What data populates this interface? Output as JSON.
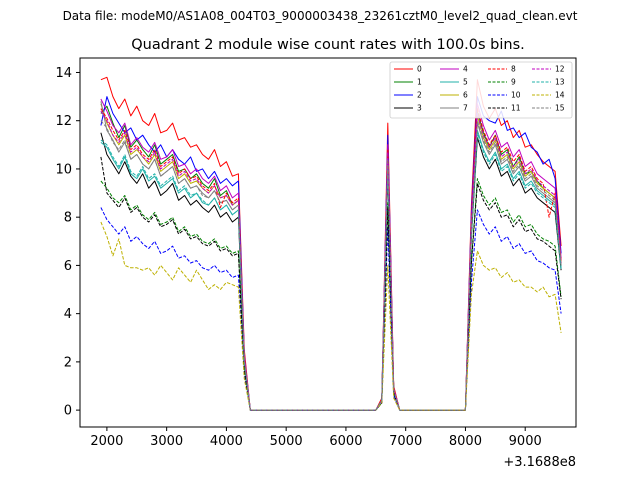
{
  "figure": {
    "suptitle": "Data file: modeM0/AS1A08_004T03_9000003438_23261cztM0_level2_quad_clean.evt",
    "offset_label": "+3.1688e8"
  },
  "chart_data": {
    "type": "line",
    "title": "Quadrant 2 module wise count rates with 100.0s bins.",
    "xlabel": "",
    "ylabel": "",
    "xlim": [
      1550,
      9850
    ],
    "ylim": [
      -0.7,
      14.6
    ],
    "x_ticks": [
      2000,
      3000,
      4000,
      5000,
      6000,
      7000,
      8000,
      9000
    ],
    "x_tick_labels": [
      "2000",
      "3000",
      "4000",
      "5000",
      "6000",
      "7000",
      "8000",
      "9000"
    ],
    "y_ticks": [
      0,
      2,
      4,
      6,
      8,
      10,
      12,
      14
    ],
    "y_tick_labels": [
      "0",
      "2",
      "4",
      "6",
      "8",
      "10",
      "12",
      "14"
    ],
    "legend_position": "top-right",
    "x": [
      1900,
      2000,
      2100,
      2200,
      2300,
      2400,
      2500,
      2600,
      2700,
      2800,
      2900,
      3000,
      3100,
      3200,
      3300,
      3400,
      3500,
      3600,
      3700,
      3800,
      3900,
      4000,
      4100,
      4200,
      4300,
      4400,
      4500,
      6500,
      6600,
      6700,
      6800,
      6900,
      8000,
      8100,
      8200,
      8300,
      8400,
      8500,
      8600,
      8700,
      8800,
      8900,
      9000,
      9100,
      9200,
      9300,
      9400,
      9500,
      9600
    ],
    "series": [
      {
        "name": "0",
        "color": "#ff0000",
        "dash": "solid",
        "values": [
          13.7,
          13.8,
          13.0,
          12.5,
          12.9,
          12.2,
          12.6,
          12.0,
          11.8,
          12.3,
          11.5,
          11.6,
          11.9,
          11.2,
          11.3,
          10.9,
          11.0,
          10.6,
          10.4,
          10.8,
          10.1,
          10.3,
          9.7,
          9.8,
          2.5,
          0.0,
          0.0,
          0.0,
          0.5,
          11.9,
          1.0,
          0.0,
          0.0,
          8.5,
          13.7,
          12.6,
          12.1,
          12.5,
          11.8,
          12.0,
          11.3,
          11.6,
          10.9,
          11.0,
          10.6,
          10.3,
          10.1,
          9.9,
          6.8
        ]
      },
      {
        "name": "1",
        "color": "#008000",
        "dash": "solid",
        "values": [
          12.3,
          12.6,
          11.9,
          11.3,
          11.8,
          10.9,
          11.2,
          10.8,
          10.5,
          11.0,
          10.2,
          10.4,
          10.6,
          9.9,
          10.0,
          9.6,
          9.8,
          9.4,
          9.2,
          9.6,
          8.9,
          9.1,
          8.5,
          8.7,
          2.2,
          0.0,
          0.0,
          0.0,
          0.4,
          10.8,
          0.9,
          0.0,
          0.0,
          7.6,
          12.4,
          11.5,
          10.9,
          11.4,
          10.6,
          10.8,
          10.1,
          10.5,
          9.8,
          9.9,
          9.5,
          9.2,
          9.0,
          8.8,
          6.0
        ]
      },
      {
        "name": "2",
        "color": "#0000ff",
        "dash": "solid",
        "values": [
          11.8,
          13.0,
          12.3,
          11.9,
          11.5,
          11.7,
          11.2,
          11.4,
          11.0,
          10.7,
          11.0,
          10.5,
          10.8,
          10.4,
          10.2,
          10.5,
          9.9,
          10.0,
          9.6,
          9.9,
          9.4,
          9.6,
          9.3,
          9.5,
          2.3,
          0.0,
          0.0,
          0.0,
          0.4,
          11.4,
          0.9,
          0.0,
          0.0,
          8.2,
          13.0,
          12.2,
          12.0,
          11.9,
          12.4,
          11.6,
          11.7,
          11.3,
          11.5,
          10.9,
          10.7,
          10.2,
          10.4,
          9.6,
          6.5
        ]
      },
      {
        "name": "3",
        "color": "#000000",
        "dash": "solid",
        "values": [
          11.5,
          10.6,
          10.2,
          9.8,
          10.3,
          9.7,
          9.4,
          9.8,
          9.2,
          9.5,
          8.9,
          9.1,
          9.4,
          8.7,
          8.9,
          8.5,
          8.7,
          8.4,
          8.2,
          8.5,
          8.0,
          8.2,
          7.8,
          8.0,
          2.0,
          0.0,
          0.0,
          0.0,
          0.4,
          9.8,
          0.8,
          0.0,
          0.0,
          7.2,
          11.3,
          10.5,
          10.0,
          10.4,
          9.7,
          9.9,
          9.3,
          9.6,
          9.0,
          9.2,
          8.8,
          8.6,
          8.4,
          8.2,
          5.8
        ]
      },
      {
        "name": "4",
        "color": "#c000c0",
        "dash": "solid",
        "values": [
          12.9,
          12.4,
          11.8,
          11.5,
          11.9,
          11.0,
          11.3,
          10.9,
          10.7,
          11.1,
          10.4,
          10.5,
          10.8,
          10.1,
          10.2,
          9.8,
          10.0,
          9.6,
          9.4,
          9.7,
          9.1,
          9.3,
          8.8,
          9.0,
          2.3,
          0.0,
          0.0,
          0.0,
          0.4,
          11.0,
          0.9,
          0.0,
          0.0,
          7.9,
          12.7,
          11.8,
          11.2,
          11.6,
          10.9,
          11.1,
          10.5,
          10.8,
          10.1,
          10.3,
          9.8,
          9.6,
          9.4,
          9.2,
          6.3
        ]
      },
      {
        "name": "5",
        "color": "#20b2aa",
        "dash": "solid",
        "values": [
          11.1,
          10.9,
          10.4,
          10.0,
          10.5,
          9.8,
          9.6,
          10.0,
          9.5,
          9.7,
          9.2,
          9.4,
          9.6,
          9.0,
          9.2,
          8.8,
          9.0,
          8.6,
          8.5,
          8.8,
          8.3,
          8.5,
          8.1,
          8.3,
          2.0,
          0.0,
          0.0,
          0.0,
          0.4,
          10.1,
          0.8,
          0.0,
          0.0,
          7.4,
          11.6,
          10.8,
          10.3,
          10.7,
          10.0,
          10.2,
          9.6,
          9.9,
          9.3,
          9.5,
          9.1,
          8.9,
          8.7,
          8.5,
          5.9
        ]
      },
      {
        "name": "6",
        "color": "#bdb000",
        "dash": "solid",
        "values": [
          12.7,
          11.9,
          11.4,
          11.0,
          11.4,
          10.6,
          10.8,
          10.5,
          10.2,
          10.6,
          9.9,
          10.1,
          10.3,
          9.6,
          9.8,
          9.4,
          9.5,
          9.2,
          9.0,
          9.3,
          8.8,
          8.9,
          8.5,
          8.7,
          2.2,
          0.0,
          0.0,
          0.0,
          0.4,
          10.6,
          0.9,
          0.0,
          0.0,
          7.7,
          12.2,
          11.3,
          10.8,
          11.2,
          10.4,
          10.6,
          10.0,
          10.3,
          9.7,
          9.9,
          9.4,
          9.2,
          9.0,
          8.8,
          6.1
        ]
      },
      {
        "name": "7",
        "color": "#808080",
        "dash": "solid",
        "values": [
          12.8,
          11.6,
          11.2,
          10.7,
          11.1,
          10.4,
          10.6,
          10.2,
          10.0,
          10.4,
          9.7,
          9.9,
          10.1,
          9.4,
          9.6,
          9.2,
          9.3,
          9.0,
          8.8,
          9.1,
          8.6,
          8.7,
          8.3,
          8.5,
          2.1,
          0.0,
          0.0,
          0.0,
          0.4,
          10.4,
          0.8,
          0.0,
          0.0,
          7.5,
          11.9,
          11.1,
          10.6,
          11.0,
          10.2,
          10.4,
          9.8,
          10.1,
          9.5,
          9.7,
          9.2,
          9.0,
          8.8,
          8.6,
          6.0
        ]
      },
      {
        "name": "8",
        "color": "#ff0000",
        "dash": "dashed",
        "values": [
          12.5,
          12.1,
          11.6,
          11.2,
          11.6,
          10.8,
          11.0,
          10.6,
          10.4,
          10.8,
          10.1,
          10.3,
          10.5,
          9.8,
          10.0,
          9.6,
          9.7,
          9.3,
          9.1,
          9.4,
          8.4,
          9.0,
          8.6,
          8.8,
          2.2,
          0.0,
          0.0,
          0.0,
          0.4,
          10.8,
          0.9,
          0.0,
          0.0,
          7.8,
          12.5,
          11.6,
          11.0,
          11.4,
          10.7,
          10.9,
          10.3,
          10.6,
          9.9,
          10.1,
          9.6,
          9.4,
          8.0,
          9.0,
          6.2
        ]
      },
      {
        "name": "9",
        "color": "#008000",
        "dash": "dashed",
        "values": [
          9.5,
          9.2,
          8.8,
          8.6,
          8.9,
          8.3,
          8.5,
          8.1,
          7.9,
          8.2,
          7.7,
          7.8,
          8.0,
          7.4,
          7.6,
          7.2,
          7.3,
          7.0,
          6.9,
          7.1,
          6.7,
          6.8,
          6.5,
          6.6,
          1.7,
          0.0,
          0.0,
          0.0,
          0.3,
          8.6,
          0.7,
          0.0,
          0.0,
          6.2,
          9.6,
          8.9,
          8.5,
          8.8,
          8.2,
          8.3,
          7.8,
          8.1,
          7.6,
          7.7,
          7.3,
          7.1,
          7.0,
          6.8,
          4.7
        ]
      },
      {
        "name": "10",
        "color": "#0000ff",
        "dash": "dashed",
        "values": [
          8.4,
          7.9,
          7.6,
          7.3,
          7.6,
          7.0,
          7.2,
          6.9,
          6.7,
          7.0,
          6.5,
          6.6,
          6.8,
          6.3,
          6.4,
          6.1,
          6.2,
          5.9,
          5.8,
          6.0,
          5.7,
          5.8,
          5.5,
          5.6,
          1.5,
          0.0,
          0.0,
          0.0,
          0.3,
          7.6,
          0.6,
          0.0,
          0.0,
          5.3,
          8.3,
          7.7,
          7.3,
          7.6,
          7.0,
          7.2,
          6.7,
          6.9,
          6.5,
          6.6,
          6.2,
          6.1,
          5.9,
          5.8,
          4.0
        ]
      },
      {
        "name": "11",
        "color": "#000000",
        "dash": "dashed",
        "values": [
          10.5,
          9.0,
          8.7,
          8.4,
          8.8,
          8.2,
          8.4,
          8.0,
          7.8,
          8.1,
          7.6,
          7.7,
          7.9,
          7.3,
          7.5,
          7.1,
          7.2,
          6.9,
          6.8,
          7.0,
          6.6,
          6.7,
          6.4,
          6.5,
          1.7,
          0.0,
          0.0,
          0.0,
          0.3,
          8.4,
          0.7,
          0.0,
          0.0,
          6.1,
          9.4,
          8.7,
          8.3,
          8.6,
          8.0,
          8.1,
          7.6,
          7.9,
          7.4,
          7.5,
          7.1,
          7.0,
          6.8,
          6.6,
          4.6
        ]
      },
      {
        "name": "12",
        "color": "#c000c0",
        "dash": "dashed",
        "values": [
          12.4,
          12.0,
          11.4,
          11.1,
          11.5,
          10.7,
          10.9,
          10.5,
          10.3,
          10.7,
          10.0,
          10.2,
          10.4,
          9.7,
          9.9,
          9.5,
          9.6,
          9.2,
          9.0,
          9.3,
          8.8,
          8.9,
          8.5,
          8.7,
          2.2,
          0.0,
          0.0,
          0.0,
          0.4,
          10.7,
          0.9,
          0.0,
          0.0,
          7.7,
          12.3,
          11.4,
          10.9,
          11.3,
          10.5,
          10.7,
          10.1,
          10.4,
          9.8,
          10.0,
          9.5,
          9.3,
          9.1,
          8.9,
          6.1
        ]
      },
      {
        "name": "13",
        "color": "#20b2aa",
        "dash": "dashed",
        "values": [
          11.2,
          11.0,
          10.5,
          10.1,
          10.6,
          9.9,
          9.7,
          10.1,
          9.6,
          9.8,
          9.3,
          9.5,
          9.7,
          9.1,
          9.3,
          8.9,
          9.0,
          8.7,
          8.5,
          8.8,
          8.3,
          8.5,
          8.1,
          8.3,
          2.0,
          0.0,
          0.0,
          0.0,
          0.4,
          10.0,
          0.8,
          0.0,
          0.0,
          7.3,
          11.5,
          10.7,
          10.2,
          10.6,
          9.9,
          10.1,
          9.5,
          9.8,
          9.2,
          9.4,
          9.0,
          8.8,
          8.6,
          8.4,
          5.8
        ]
      },
      {
        "name": "14",
        "color": "#bdb000",
        "dash": "dashed",
        "values": [
          7.8,
          7.2,
          6.4,
          7.1,
          6.0,
          5.9,
          5.9,
          5.8,
          5.9,
          5.6,
          6.0,
          5.7,
          5.4,
          5.9,
          5.6,
          5.3,
          5.8,
          5.4,
          5.0,
          5.2,
          5.0,
          5.3,
          5.2,
          5.1,
          1.3,
          0.0,
          0.0,
          0.0,
          0.3,
          6.0,
          0.5,
          0.0,
          0.0,
          4.8,
          6.6,
          6.0,
          5.8,
          5.9,
          5.5,
          5.7,
          5.3,
          5.4,
          5.1,
          5.1,
          4.9,
          5.1,
          4.7,
          4.8,
          3.2
        ]
      },
      {
        "name": "15",
        "color": "#808080",
        "dash": "dashed",
        "values": [
          12.0,
          11.7,
          11.1,
          10.8,
          11.2,
          10.4,
          10.6,
          10.2,
          10.0,
          10.4,
          9.7,
          9.9,
          10.1,
          9.4,
          9.6,
          9.2,
          9.3,
          8.9,
          8.8,
          9.1,
          8.6,
          8.7,
          8.3,
          8.5,
          2.1,
          0.0,
          0.0,
          0.0,
          0.4,
          10.4,
          0.8,
          0.0,
          0.0,
          7.5,
          12.0,
          11.2,
          10.7,
          11.1,
          10.3,
          10.5,
          9.9,
          10.2,
          9.6,
          9.8,
          9.3,
          9.1,
          8.9,
          8.7,
          6.0
        ]
      }
    ]
  }
}
